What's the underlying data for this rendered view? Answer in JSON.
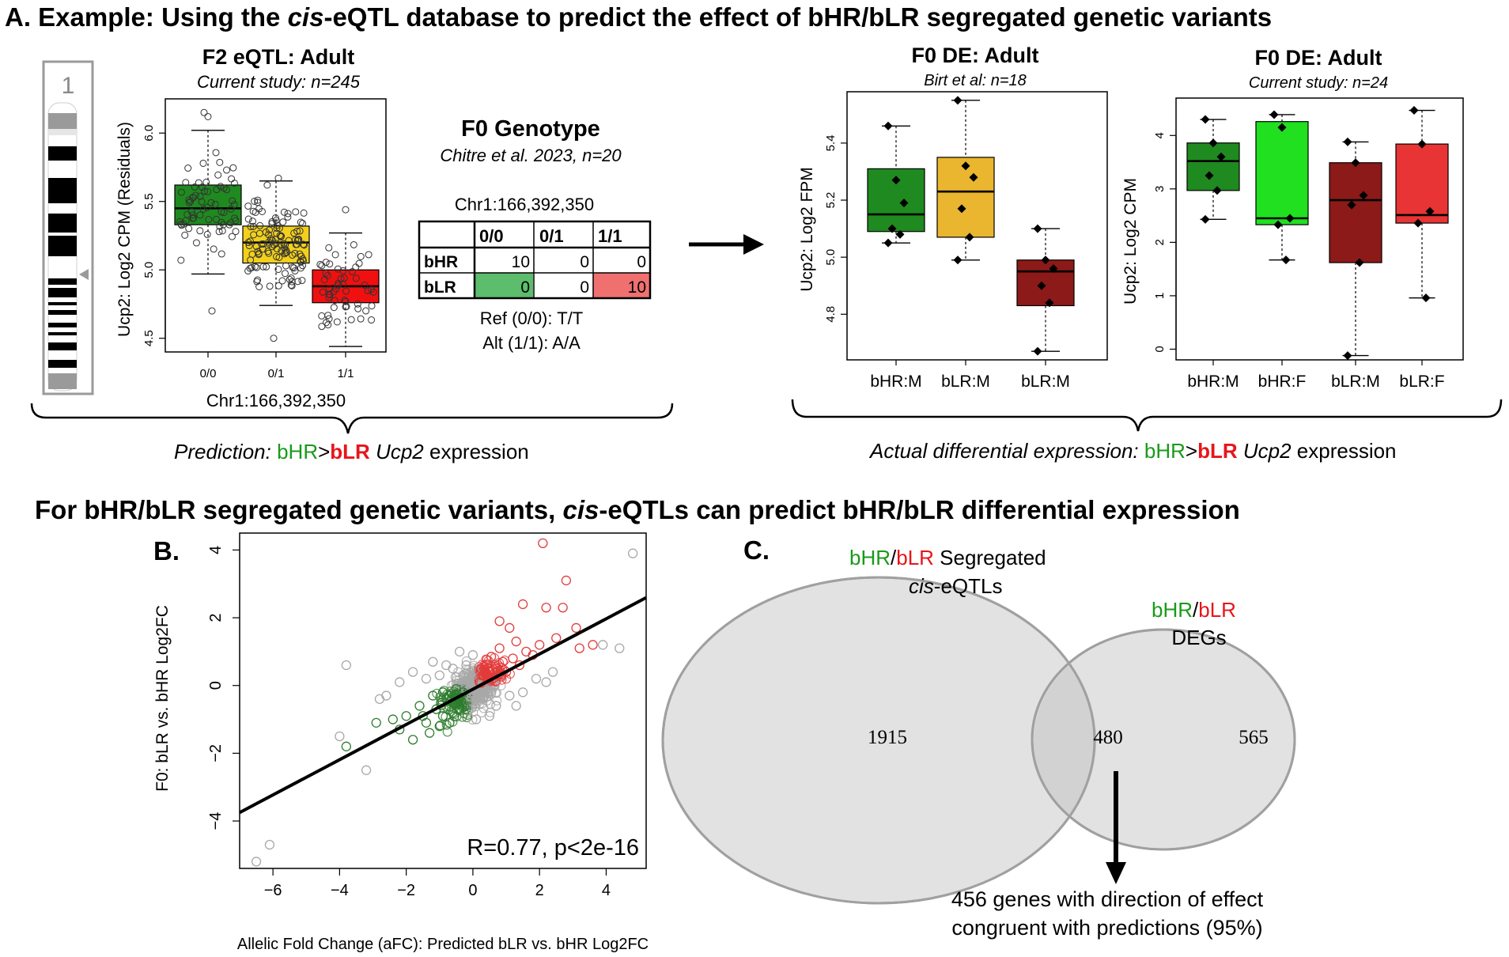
{
  "panelA": {
    "title_prefix": "A. Example: Using the ",
    "title_italic": "cis",
    "title_suffix": "-eQTL database to predict the effect of bHR/bLR segregated genetic variants",
    "chromosome_label": "1",
    "eqtl_title": "F2 eQTL: Adult",
    "eqtl_subtitle": "Current study: n=245",
    "eqtl_ylabel": "Ucp2: Log2 CPM (Residuals)",
    "eqtl_xlabel": "Chr1:166,392,350",
    "geno_title": "F0 Genotype",
    "geno_subtitle": "Chitre et al. 2023, n=20",
    "geno_locus": "Chr1:166,392,350",
    "geno_headers": [
      "0/0",
      "0/1",
      "1/1"
    ],
    "geno_rows": [
      {
        "label": "bHR",
        "values": [
          "10",
          "0",
          "0"
        ]
      },
      {
        "label": "bLR",
        "values": [
          "0",
          "0",
          "10"
        ]
      }
    ],
    "geno_ref": "Ref (0/0): T/T",
    "geno_alt": "Alt (1/1): A/A",
    "pred_italic": "Prediction:",
    "pred_hr": "bHR",
    "pred_gt": ">",
    "pred_lr": "bLR",
    "pred_gene": "Ucp2",
    "pred_tail": "expression",
    "de1_title": "F0 DE: Adult",
    "de1_subtitle": "Birt et al: n=18",
    "de1_ylabel": "Ucp2: Log2 FPM",
    "de2_title": "F0 DE: Adult",
    "de2_subtitle": "Current study: n=24",
    "de2_ylabel": "Ucp2: Log2 CPM",
    "actual_italic": "Actual differential expression:",
    "actual_hr": "bHR",
    "actual_gt": ">",
    "actual_lr": "bLR",
    "actual_gene": "Ucp2",
    "actual_tail": "expression"
  },
  "section2": {
    "title_prefix": "For bHR/bLR segregated genetic variants, ",
    "title_italic": "cis",
    "title_suffix": "-eQTLs can predict bHR/bLR differential expression"
  },
  "panelB": {
    "label": "B.",
    "xlabel": "Allelic Fold Change (aFC): Predicted bLR vs. bHR Log2FC",
    "ylabel": "F0: bLR vs. bHR Log2FC",
    "stat": "R=0.77, p<2e-16"
  },
  "panelC": {
    "label": "C.",
    "set1_hr": "bHR",
    "set1_slash": "/",
    "set1_lr": "bLR",
    "set1_rest": " Segregated",
    "set1_line2_italic": "cis",
    "set1_line2_rest": "-eQTLs",
    "set2_hr": "bHR",
    "set2_slash": "/",
    "set2_lr": "bLR",
    "set2_line2": "DEGs",
    "only1": "1915",
    "overlap": "480",
    "only2": "565",
    "note_line1": "456 genes with direction of effect",
    "note_line2": "congruent with predictions (95%)"
  },
  "colors": {
    "hr_green": "#1a9a1a",
    "lr_red": "#e8141a",
    "box_dark_green": "#1f8a1f",
    "box_yellow": "#f2d01c",
    "box_red": "#f01010",
    "box_mustard": "#eab630",
    "box_dark_red": "#8c1a18",
    "box_light_green": "#20e020",
    "box_light_red": "#e83434",
    "table_green": "#5cbd6c",
    "table_red": "#f07070",
    "venn_fill": "#e2e2e2",
    "venn_overlap": "#d2d2d2"
  },
  "chart_data": [
    {
      "id": "f2-eqtl",
      "type": "box",
      "title": "F2 eQTL: Adult",
      "subtitle": "Current study: n=245",
      "xlabel": "Chr1:166,392,350",
      "ylabel": "Ucp2: Log2 CPM (Residuals)",
      "ylim": [
        4.4,
        6.25
      ],
      "yticks": [
        "4.5",
        "5.0",
        "5.5",
        "6.0"
      ],
      "categories": [
        "0/0",
        "0/1",
        "1/1"
      ],
      "boxes": [
        {
          "q1": 5.33,
          "median": 5.45,
          "q3": 5.62,
          "whisker_low": 4.97,
          "whisker_high": 6.02,
          "n": 70,
          "color": "#1f8a1f"
        },
        {
          "q1": 5.05,
          "median": 5.2,
          "q3": 5.32,
          "whisker_low": 4.74,
          "whisker_high": 5.65,
          "n": 120,
          "color": "#f2d01c"
        },
        {
          "q1": 4.76,
          "median": 4.88,
          "q3": 5.0,
          "whisker_low": 4.44,
          "whisker_high": 5.27,
          "n": 55,
          "color": "#f01010"
        }
      ]
    },
    {
      "id": "f0-de-birt",
      "type": "box",
      "title": "F0 DE: Adult",
      "subtitle": "Birt et al: n=18",
      "ylabel": "Ucp2: Log2 FPM",
      "ylim": [
        4.64,
        5.58
      ],
      "yticks": [
        "4.8",
        "5.0",
        "5.2",
        "5.4"
      ],
      "categories": [
        "bHR:M",
        "bLR:M",
        "bLR:M"
      ],
      "boxes": [
        {
          "q1": 5.09,
          "median": 5.15,
          "q3": 5.31,
          "whisker_low": 5.05,
          "whisker_high": 5.46,
          "points": [
            5.46,
            5.27,
            5.19,
            5.1,
            5.08,
            5.05
          ],
          "color": "#1f8a1f"
        },
        {
          "q1": 5.07,
          "median": 5.23,
          "q3": 5.35,
          "whisker_low": 4.99,
          "whisker_high": 5.55,
          "points": [
            5.55,
            5.32,
            5.28,
            5.17,
            5.07,
            4.99
          ],
          "color": "#eab630"
        },
        {
          "q1": 4.83,
          "median": 4.95,
          "q3": 4.99,
          "whisker_low": 4.67,
          "whisker_high": 5.1,
          "points": [
            5.1,
            4.99,
            4.96,
            4.9,
            4.84,
            4.67
          ],
          "color": "#8c1a18"
        }
      ]
    },
    {
      "id": "f0-de-current",
      "type": "box",
      "title": "F0 DE: Adult",
      "subtitle": "Current study: n=24",
      "ylabel": "Ucp2: Log2 CPM",
      "ylim": [
        -0.2,
        4.7
      ],
      "yticks": [
        "0",
        "1",
        "2",
        "3",
        "4"
      ],
      "categories": [
        "bHR:M",
        "bHR:F",
        "bLR:M",
        "bLR:F"
      ],
      "boxes": [
        {
          "q1": 2.97,
          "median": 3.52,
          "q3": 3.86,
          "whisker_low": 2.43,
          "whisker_high": 4.3,
          "points": [
            4.3,
            3.86,
            3.6,
            3.25,
            2.97,
            2.43
          ],
          "color": "#1f8a1f"
        },
        {
          "q1": 2.33,
          "median": 2.45,
          "q3": 4.26,
          "whisker_low": 1.67,
          "whisker_high": 4.39,
          "points": [
            4.39,
            4.15,
            2.45,
            2.33,
            1.67
          ],
          "color": "#20e020"
        },
        {
          "q1": 1.62,
          "median": 2.79,
          "q3": 3.49,
          "whisker_low": -0.12,
          "whisker_high": 3.88,
          "points": [
            3.88,
            3.49,
            2.88,
            2.7,
            1.62,
            -0.12
          ],
          "color": "#8c1a18"
        },
        {
          "q1": 2.36,
          "median": 2.51,
          "q3": 3.84,
          "whisker_low": 0.96,
          "whisker_high": 4.47,
          "points": [
            4.47,
            3.84,
            2.58,
            2.36,
            0.96
          ],
          "color": "#e83434"
        }
      ]
    },
    {
      "id": "aFC-scatter",
      "type": "scatter",
      "xlabel": "Allelic Fold Change (aFC): Predicted bLR vs. bHR Log2FC",
      "ylabel": "F0: bLR vs. bHR Log2FC",
      "xlim": [
        -7,
        5.2
      ],
      "ylim": [
        -5.4,
        4.5
      ],
      "xticks": [
        "-6",
        "-4",
        "-2",
        "0",
        "2",
        "4"
      ],
      "yticks": [
        "-4",
        "-2",
        "0",
        "2",
        "4"
      ],
      "fit": {
        "slope": 0.52,
        "intercept": -0.11
      },
      "annotation": "R=0.77, p<2e-16",
      "series": [
        {
          "name": "congruent bHR>bLR (green)",
          "color": "#2e7d2e",
          "points": [
            [
              -3.8,
              -1.8
            ],
            [
              -2.9,
              -1.1
            ],
            [
              -2.2,
              -1.3
            ],
            [
              -1.8,
              -1.6
            ],
            [
              -1.5,
              -0.9
            ],
            [
              -1.3,
              -1.4
            ],
            [
              -1.1,
              -0.7
            ],
            [
              -0.9,
              -0.9
            ],
            [
              -0.8,
              -0.4
            ],
            [
              -0.7,
              -1.1
            ],
            [
              -0.6,
              -0.5
            ],
            [
              -0.5,
              -0.3
            ],
            [
              -0.4,
              -0.7
            ],
            [
              -0.3,
              -0.2
            ],
            [
              -1.6,
              -0.6
            ],
            [
              -2.0,
              -0.9
            ],
            [
              -1.2,
              -0.3
            ],
            [
              -0.9,
              -0.2
            ],
            [
              -0.6,
              -0.8
            ],
            [
              -0.5,
              -0.1
            ],
            [
              -1.4,
              -1.1
            ],
            [
              -1.0,
              -1.2
            ],
            [
              -0.7,
              -0.3
            ],
            [
              -2.4,
              -1.0
            ],
            [
              -0.35,
              -0.45
            ]
          ]
        },
        {
          "name": "congruent bLR>bHR (red)",
          "color": "#e33b3b",
          "points": [
            [
              2.1,
              4.2
            ],
            [
              2.8,
              3.1
            ],
            [
              2.2,
              2.3
            ],
            [
              1.5,
              2.4
            ],
            [
              0.8,
              1.9
            ],
            [
              1.1,
              1.7
            ],
            [
              3.1,
              1.7
            ],
            [
              3.2,
              1.1
            ],
            [
              3.6,
              1.2
            ],
            [
              2.0,
              1.2
            ],
            [
              1.6,
              1.0
            ],
            [
              1.2,
              0.8
            ],
            [
              0.9,
              0.7
            ],
            [
              0.7,
              0.5
            ],
            [
              0.5,
              0.4
            ],
            [
              0.3,
              0.3
            ],
            [
              0.2,
              0.1
            ],
            [
              0.6,
              0.2
            ],
            [
              1.0,
              0.4
            ],
            [
              1.4,
              0.6
            ],
            [
              0.4,
              0.6
            ],
            [
              0.8,
              1.1
            ],
            [
              1.8,
              0.9
            ],
            [
              2.5,
              1.4
            ],
            [
              0.25,
              0.5
            ],
            [
              1.3,
              1.3
            ],
            [
              0.55,
              0.85
            ],
            [
              2.7,
              2.3
            ]
          ]
        },
        {
          "name": "other (grey)",
          "color": "#a8a8a8",
          "points": [
            [
              -6.5,
              -5.2
            ],
            [
              -6.1,
              -4.7
            ],
            [
              -3.2,
              -2.5
            ],
            [
              -4.0,
              -1.5
            ],
            [
              -3.8,
              0.6
            ],
            [
              -2.6,
              -0.3
            ],
            [
              -2.2,
              0.1
            ],
            [
              -1.8,
              0.4
            ],
            [
              -1.4,
              0.2
            ],
            [
              -1.0,
              0.3
            ],
            [
              -0.6,
              0.5
            ],
            [
              -0.2,
              0.6
            ],
            [
              0.3,
              -0.4
            ],
            [
              0.7,
              -0.6
            ],
            [
              1.1,
              -0.3
            ],
            [
              1.5,
              -0.2
            ],
            [
              1.9,
              0.2
            ],
            [
              2.4,
              0.4
            ],
            [
              3.9,
              1.2
            ],
            [
              4.4,
              1.1
            ],
            [
              4.8,
              3.9
            ],
            [
              -0.4,
              1.0
            ],
            [
              0.1,
              -1.0
            ],
            [
              0.5,
              -0.9
            ],
            [
              -2.8,
              -0.4
            ],
            [
              -1.2,
              0.7
            ],
            [
              0.0,
              0.9
            ],
            [
              -0.8,
              0.6
            ],
            [
              1.3,
              -0.6
            ],
            [
              2.2,
              0.1
            ]
          ]
        }
      ]
    },
    {
      "id": "venn",
      "type": "venn",
      "sets": [
        "bHR/bLR Segregated cis-eQTLs",
        "bHR/bLR DEGs"
      ],
      "values": {
        "set1_only": 1915,
        "overlap": 480,
        "set2_only": 565
      },
      "note": "456 genes with direction of effect congruent with predictions (95%)"
    }
  ]
}
